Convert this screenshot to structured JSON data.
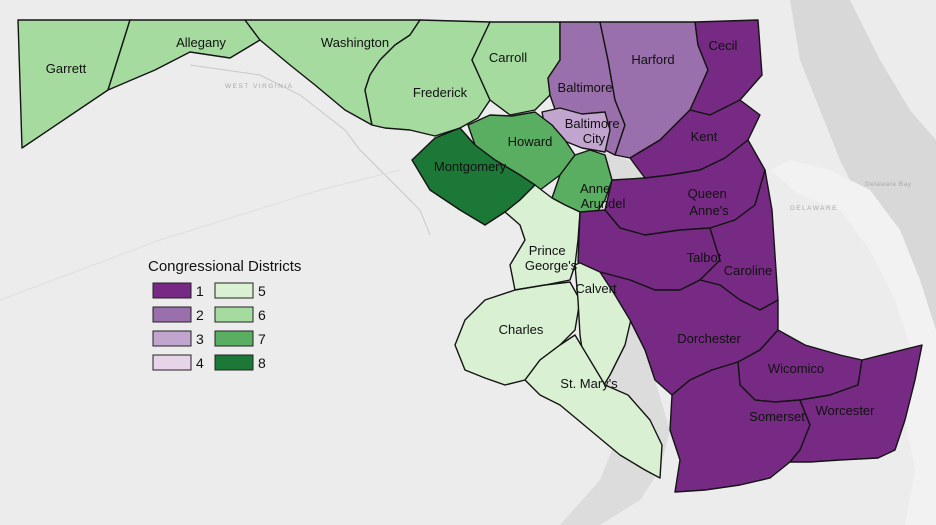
{
  "colors": {
    "1": "#762a83",
    "2": "#9970ab",
    "3": "#c2a5cf",
    "4": "#e7d4e8",
    "5": "#d9f0d3",
    "6": "#a6dba0",
    "7": "#5aae61",
    "8": "#1b7837"
  },
  "legend": {
    "title": "Congressional Districts",
    "items": [
      {
        "district": "1",
        "label": "1"
      },
      {
        "district": "2",
        "label": "2"
      },
      {
        "district": "3",
        "label": "3"
      },
      {
        "district": "4",
        "label": "4"
      },
      {
        "district": "5",
        "label": "5"
      },
      {
        "district": "6",
        "label": "6"
      },
      {
        "district": "7",
        "label": "7"
      },
      {
        "district": "8",
        "label": "8"
      }
    ]
  },
  "basemap_labels": {
    "west_virginia": "WEST VIRGINIA",
    "delaware": "DELAWARE",
    "delaware_bay": "Delaware Bay"
  },
  "counties": [
    {
      "id": "garrett",
      "name": "Garrett",
      "district": "6"
    },
    {
      "id": "allegany",
      "name": "Allegany",
      "district": "6"
    },
    {
      "id": "washington",
      "name": "Washington",
      "district": "6"
    },
    {
      "id": "frederick",
      "name": "Frederick",
      "district": "6"
    },
    {
      "id": "carroll",
      "name": "Carroll",
      "district": "6"
    },
    {
      "id": "baltimore",
      "name": "Baltimore",
      "district": "2"
    },
    {
      "id": "harford",
      "name": "Harford",
      "district": "2"
    },
    {
      "id": "cecil",
      "name": "Cecil",
      "district": "1"
    },
    {
      "id": "baltimore-city",
      "name": "Baltimore City",
      "name_lines": [
        "Baltimore",
        "City"
      ],
      "district": "3"
    },
    {
      "id": "howard",
      "name": "Howard",
      "district": "7"
    },
    {
      "id": "montgomery",
      "name": "Montgomery",
      "district": "8"
    },
    {
      "id": "anne-arundel",
      "name": "Anne Arundel",
      "name_lines": [
        "Anne",
        "Arundel"
      ],
      "district": "7"
    },
    {
      "id": "prince-georges",
      "name": "Prince George's",
      "name_lines": [
        "Prince",
        "George's"
      ],
      "district": "5"
    },
    {
      "id": "calvert",
      "name": "Calvert",
      "district": "5"
    },
    {
      "id": "charles",
      "name": "Charles",
      "district": "5"
    },
    {
      "id": "st-marys",
      "name": "St. Mary's",
      "district": "5"
    },
    {
      "id": "kent",
      "name": "Kent",
      "district": "1"
    },
    {
      "id": "queen-annes",
      "name": "Queen Anne's",
      "name_lines": [
        "Queen",
        "Anne's"
      ],
      "district": "1"
    },
    {
      "id": "talbot",
      "name": "Talbot",
      "district": "1"
    },
    {
      "id": "caroline",
      "name": "Caroline",
      "district": "1"
    },
    {
      "id": "dorchester",
      "name": "Dorchester",
      "district": "1"
    },
    {
      "id": "wicomico",
      "name": "Wicomico",
      "district": "1"
    },
    {
      "id": "somerset",
      "name": "Somerset",
      "district": "1"
    },
    {
      "id": "worcester",
      "name": "Worcester",
      "district": "1"
    }
  ]
}
